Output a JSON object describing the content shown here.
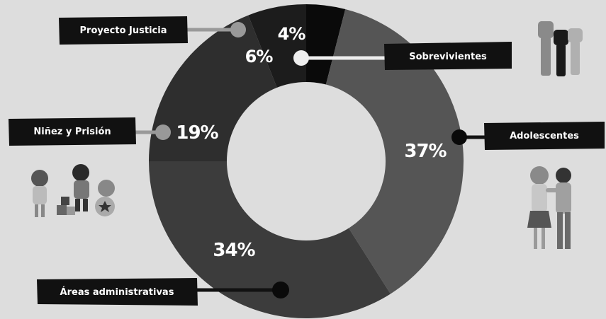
{
  "chart_data": {
    "type": "pie",
    "donut": true,
    "categories": [
      "Sobrevivientes",
      "Adolescentes",
      "Áreas administrativas",
      "Niñez y Prisión",
      "Proyecto Justicia"
    ],
    "values": [
      4,
      37,
      34,
      19,
      6
    ],
    "value_labels": [
      "4%",
      "37%",
      "34%",
      "19%",
      "6%"
    ],
    "colors": {
      "Sobrevivientes": "#0a0a0a",
      "Adolescentes": "#555555",
      "Áreas administrativas": "#3c3c3c",
      "Niñez y Prisión": "#2e2e2e",
      "Proyecto Justicia": "#1c1c1c"
    },
    "legend": "callout-labels"
  },
  "colors": {
    "background": "#dddddd",
    "label_box": "#111111",
    "label_text": "#ffffff",
    "hole": "#dddddd",
    "dot_light": "#eeeeee",
    "dot_gray": "#999999",
    "dot_dark": "#111111"
  },
  "illustrations": {
    "top_right": "raised-fists-icon",
    "right": "teen-couple-icon",
    "left": "children-playing-icon"
  }
}
